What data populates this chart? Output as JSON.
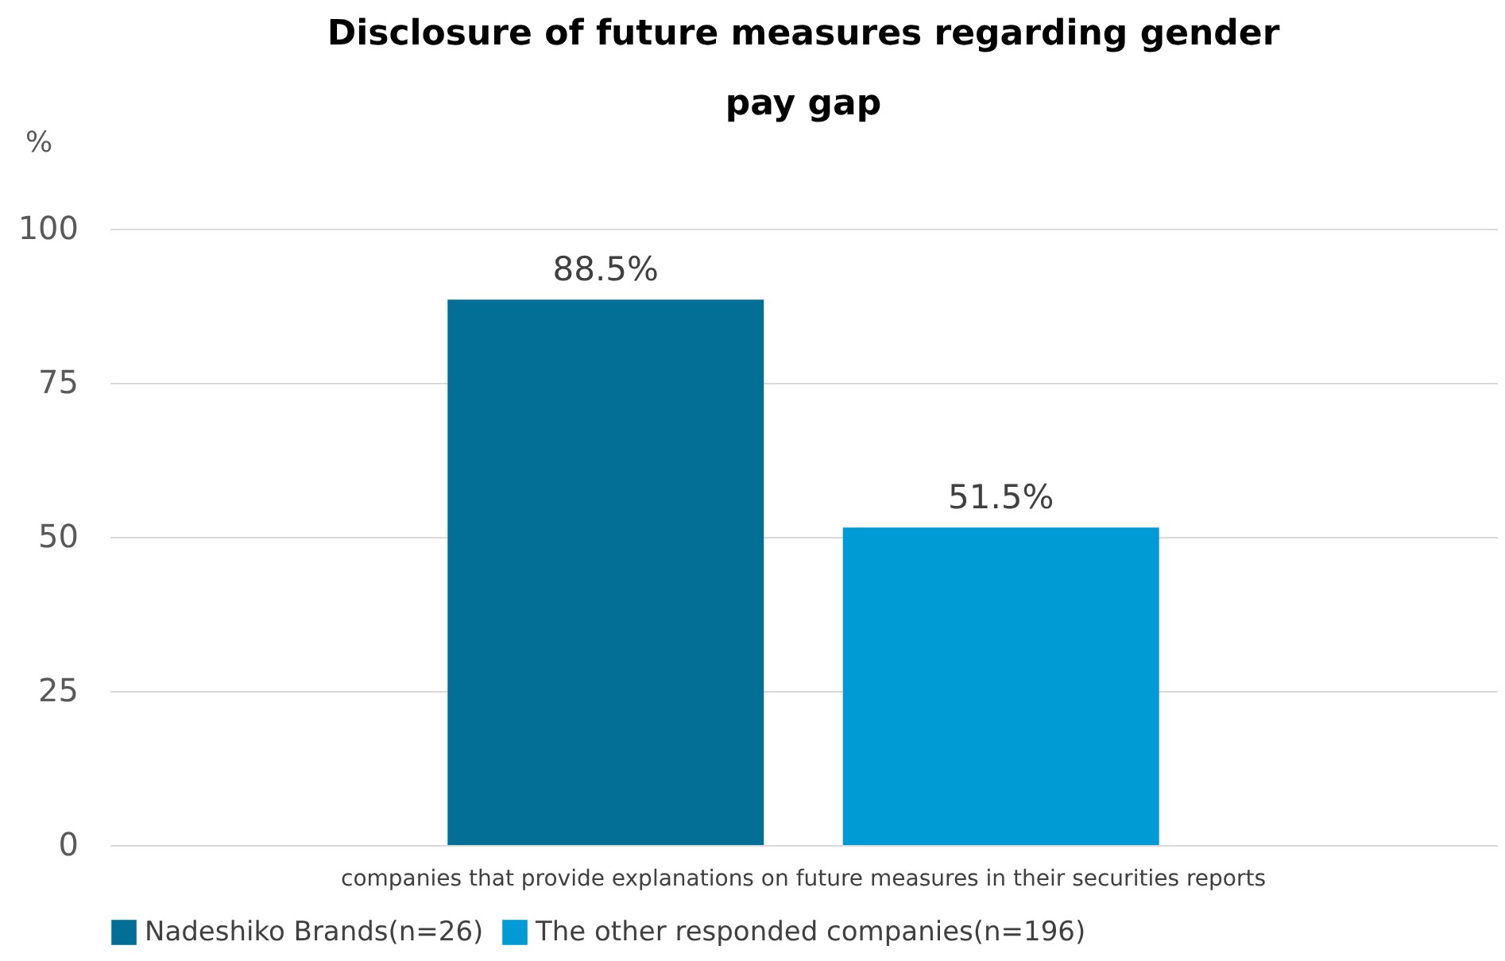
{
  "chart_data": {
    "type": "bar",
    "title": [
      "Disclosure of future measures regarding gender",
      "pay gap"
    ],
    "ylabel": "%",
    "categories": [
      "companies that provide explanations on future measures in their securities reports"
    ],
    "series": [
      {
        "name": "Nadeshiko Brands(n=26)",
        "color": "#036f96",
        "values": [
          88.5
        ],
        "value_labels": [
          "88.5%"
        ]
      },
      {
        "name": "The other responded companies(n=196)",
        "color": "#009bd4",
        "values": [
          51.5
        ],
        "value_labels": [
          "51.5%"
        ]
      }
    ],
    "ylim": [
      0,
      100
    ],
    "yticks": [
      0,
      25,
      50,
      75,
      100
    ],
    "grid": "y",
    "legend": "bottom"
  }
}
